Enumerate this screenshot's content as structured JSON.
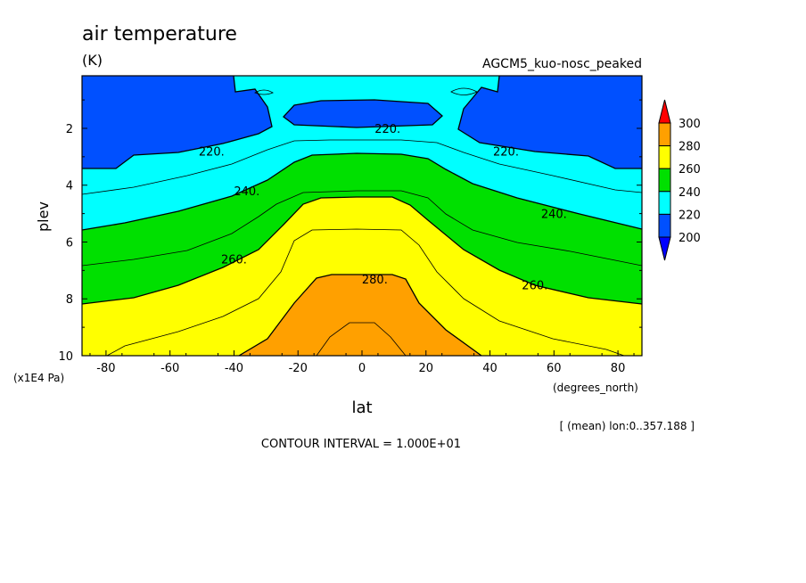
{
  "chart_data": {
    "type": "heatmap",
    "title": "air temperature",
    "units": "(K)",
    "subtitle": "AGCM5_kuo-nosc_peaked",
    "xlabel": "lat",
    "x_units": "(degrees_north)",
    "ylabel": "plev",
    "y_units": "(x1E4 Pa)",
    "xlim": [
      -87.5,
      87.5
    ],
    "ylim": [
      0.15,
      10
    ],
    "x_ticks": [
      -80,
      -60,
      -40,
      -20,
      0,
      20,
      40,
      60,
      80
    ],
    "x_tick_labels": [
      "-80",
      "-60",
      "-40",
      "-20",
      "0",
      "20",
      "40",
      "60",
      "80"
    ],
    "y_ticks": [
      2,
      4,
      6,
      8,
      10
    ],
    "y_tick_labels": [
      "2",
      "4",
      "6",
      "8",
      "10"
    ],
    "contour_levels": [
      200,
      210,
      220,
      230,
      240,
      250,
      260,
      270,
      280,
      290
    ],
    "contour_labels": [
      {
        "text": "220.",
        "lat": 8,
        "plev": 2.0
      },
      {
        "text": "220.",
        "lat": -47,
        "plev": 2.8
      },
      {
        "text": "220.",
        "lat": 45,
        "plev": 2.8
      },
      {
        "text": "240.",
        "lat": -36,
        "plev": 4.2
      },
      {
        "text": "240.",
        "lat": 60,
        "plev": 5.0
      },
      {
        "text": "260.",
        "lat": -40,
        "plev": 6.6
      },
      {
        "text": "260.",
        "lat": 54,
        "plev": 7.5
      },
      {
        "text": "280.",
        "lat": 4,
        "plev": 7.3
      }
    ],
    "colorbar": {
      "levels": [
        "200",
        "220",
        "240",
        "260",
        "280",
        "300"
      ],
      "colors": [
        "#0050ff",
        "#00ffff",
        "#00e000",
        "#ffff00",
        "#ffa000",
        "#ff0000"
      ],
      "under_color": "#0000ff"
    },
    "bottom_right_note": "[ (mean) lon:0..357.188 ]",
    "contour_interval": "CONTOUR INTERVAL = 1.000E+01"
  }
}
